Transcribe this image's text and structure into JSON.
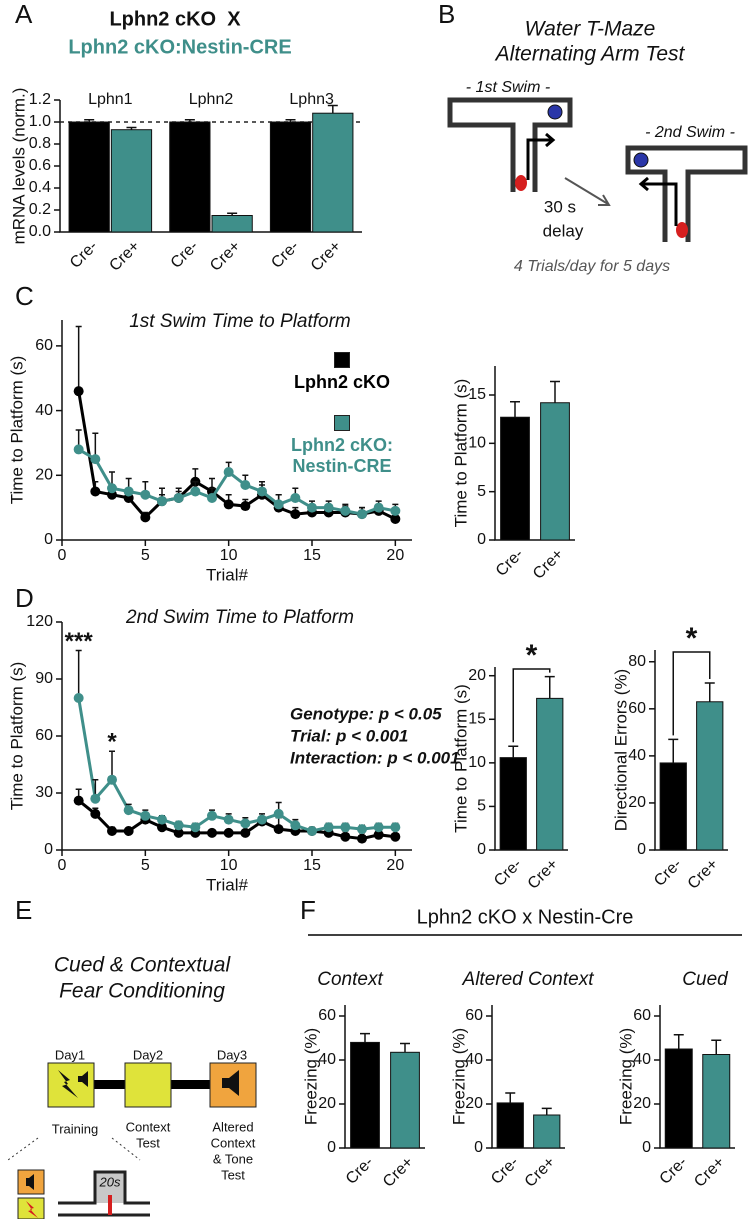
{
  "figure": {
    "panel_labels": [
      "A",
      "B",
      "C",
      "D",
      "E",
      "F"
    ],
    "f_header": "Lphn2 cKO x Nestin-Cre"
  },
  "diagram_b": {
    "title": [
      "Water T-Maze",
      "Alternating Arm Test"
    ],
    "swim1": "- 1st Swim -",
    "swim2": "- 2nd Swim -",
    "delay": [
      "30 s",
      "delay"
    ],
    "footer": "4 Trials/day for 5 days"
  },
  "diagram_e": {
    "title": [
      "Cued & Contextual",
      "Fear Conditioning"
    ],
    "days": [
      "Day1",
      "Day2",
      "Day3"
    ],
    "training": "Training",
    "day2_caption": [
      "Context",
      "Test"
    ],
    "day3_caption": [
      "Altered",
      "Context",
      "& Tone",
      "Test"
    ],
    "duration": "20s"
  },
  "chart_data": [
    {
      "type": "bar",
      "title": "Lphn2 cKO  X",
      "subtitle": "Lphn2 cKO:Nestin-CRE",
      "ylabel": "mRNA levels (norm.)",
      "categories": [
        "Lphn1",
        "Lphn2",
        "Lphn3"
      ],
      "series": [
        {
          "name": "Cre-",
          "color": "#000000",
          "values": [
            1.0,
            1.0,
            1.0
          ],
          "errors": [
            0.02,
            0.02,
            0.02
          ]
        },
        {
          "name": "Cre+",
          "color": "#3f8f8a",
          "values": [
            0.93,
            0.15,
            1.08
          ],
          "errors": [
            0.02,
            0.02,
            0.07
          ]
        }
      ],
      "ylim": [
        0,
        1.2
      ],
      "yticks": [
        {
          "value": 0,
          "label": "0.0"
        },
        0.2,
        0.4,
        0.6,
        0.8,
        {
          "value": 1,
          "label": "1.0"
        },
        1.2
      ],
      "reference_line": 1
    },
    {
      "type": "line",
      "title": "1st Swim Time to Platform",
      "xlabel": "Trial#",
      "ylabel": "Time to Platform (s)",
      "x": [
        1,
        2,
        3,
        4,
        5,
        6,
        7,
        8,
        9,
        10,
        11,
        12,
        13,
        14,
        15,
        16,
        17,
        18,
        19,
        20
      ],
      "series": [
        {
          "name": "Lphn2 cKO",
          "color": "#000000",
          "values": [
            46,
            15,
            14,
            13,
            7,
            12,
            13,
            18,
            15,
            11,
            10.5,
            14,
            10,
            8,
            8.5,
            8.5,
            8.5,
            8,
            9,
            6.5
          ],
          "errors": [
            20,
            3,
            3,
            3,
            1.5,
            2,
            2,
            4,
            4,
            3,
            2,
            3,
            4,
            2,
            2,
            2,
            2,
            2,
            2,
            2
          ]
        },
        {
          "name": "Lphn2 cKO:\nNestin-CRE",
          "color": "#3f8f8a",
          "values": [
            28,
            25,
            16,
            15,
            14,
            12,
            13,
            15,
            13,
            21,
            17,
            15,
            11,
            13,
            10,
            10,
            9,
            8,
            10,
            9
          ],
          "errors": [
            6,
            8,
            5,
            4,
            4,
            4,
            3,
            3,
            3,
            3,
            3,
            3,
            3,
            3,
            2,
            2,
            2,
            2,
            2,
            2
          ]
        }
      ],
      "xlim": [
        0,
        21
      ],
      "xticks": [
        0,
        5,
        10,
        15,
        20
      ],
      "ylim": [
        0,
        68
      ],
      "yticks": [
        0,
        20,
        40,
        60
      ],
      "legend": "center right"
    },
    {
      "type": "bar",
      "ylabel": "Time to Platform (s)",
      "categories": [
        "Cre-",
        "Cre+"
      ],
      "values": [
        12.7,
        14.2
      ],
      "errors": [
        1.6,
        2.2
      ],
      "colors": [
        "#000000",
        "#3f8f8a"
      ],
      "ylim": [
        0,
        18
      ],
      "yticks": [
        0,
        5,
        10,
        15
      ]
    },
    {
      "type": "line",
      "title": "2nd Swim Time to Platform",
      "xlabel": "Trial#",
      "ylabel": "Time to Platform (s)",
      "x": [
        1,
        2,
        3,
        4,
        5,
        6,
        7,
        8,
        9,
        10,
        11,
        12,
        13,
        14,
        15,
        16,
        17,
        18,
        19,
        20
      ],
      "series": [
        {
          "color": "#000000",
          "values": [
            26,
            19,
            10,
            10,
            16,
            12,
            9,
            9,
            9,
            9,
            9,
            15,
            11,
            10,
            10,
            9,
            7,
            6,
            8,
            7
          ],
          "errors": [
            6,
            3,
            2,
            1,
            2,
            2,
            1,
            1,
            1,
            1,
            1,
            1,
            6,
            2,
            1,
            1,
            3,
            3,
            1,
            1
          ]
        },
        {
          "color": "#3f8f8a",
          "values": [
            80,
            27,
            37,
            21,
            18,
            16,
            13,
            12,
            18,
            16,
            14,
            16,
            19,
            13,
            10,
            12,
            12,
            11,
            12,
            12
          ],
          "errors": [
            25,
            10,
            15,
            3,
            3,
            2,
            2,
            2,
            3,
            3,
            3,
            3,
            6,
            3,
            2,
            2,
            2,
            2,
            2,
            2
          ]
        }
      ],
      "xlim": [
        0,
        21
      ],
      "xticks": [
        0,
        5,
        10,
        15,
        20
      ],
      "ylim": [
        0,
        120
      ],
      "yticks": [
        0,
        30,
        60,
        90,
        120
      ],
      "annotations": [
        {
          "text": "***",
          "x": 1
        },
        {
          "text": "*",
          "x": 3
        }
      ],
      "stats": [
        "Genotype: p < 0.05",
        "Trial: p < 0.001",
        "Interaction: p < 0.001"
      ]
    },
    {
      "type": "bar",
      "ylabel": "Time to Platform (s)",
      "categories": [
        "Cre-",
        "Cre+"
      ],
      "values": [
        10.6,
        17.4
      ],
      "errors": [
        1.3,
        2.5
      ],
      "colors": [
        "#000000",
        "#3f8f8a"
      ],
      "ylim": [
        0,
        21
      ],
      "yticks": [
        0,
        5,
        10,
        15,
        20
      ],
      "significance": "*"
    },
    {
      "type": "bar",
      "ylabel": "Directional Errors (%)",
      "categories": [
        "Cre-",
        "Cre+"
      ],
      "values": [
        37,
        63
      ],
      "errors": [
        10,
        8
      ],
      "colors": [
        "#000000",
        "#3f8f8a"
      ],
      "ylim": [
        0,
        85
      ],
      "yticks": [
        0,
        20,
        40,
        60,
        80
      ],
      "significance": "*"
    },
    {
      "type": "bar",
      "title": "Context",
      "ylabel": "Freezing (%)",
      "categories": [
        "Cre-",
        "Cre+"
      ],
      "values": [
        48,
        43.5
      ],
      "errors": [
        4,
        4
      ],
      "colors": [
        "#000000",
        "#3f8f8a"
      ],
      "ylim": [
        0,
        65
      ],
      "yticks": [
        0,
        20,
        40,
        60
      ]
    },
    {
      "type": "bar",
      "title": "Altered Context",
      "ylabel": "Freezing (%)",
      "categories": [
        "Cre-",
        "Cre+"
      ],
      "values": [
        20.5,
        15
      ],
      "errors": [
        4.5,
        3
      ],
      "colors": [
        "#000000",
        "#3f8f8a"
      ],
      "ylim": [
        0,
        65
      ],
      "yticks": [
        0,
        20,
        40,
        60
      ]
    },
    {
      "type": "bar",
      "title": "Cued",
      "ylabel": "Freezing (%)",
      "categories": [
        "Cre-",
        "Cre+"
      ],
      "values": [
        45,
        42.5
      ],
      "errors": [
        6.5,
        6.5
      ],
      "colors": [
        "#000000",
        "#3f8f8a"
      ],
      "ylim": [
        0,
        65
      ],
      "yticks": [
        0,
        20,
        40,
        60
      ]
    }
  ]
}
